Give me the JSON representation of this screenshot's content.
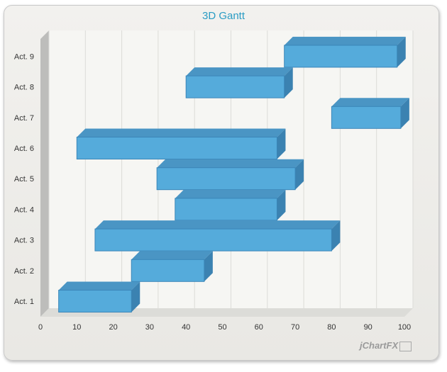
{
  "chart_data": {
    "type": "bar",
    "orientation": "horizontal-gantt",
    "title": "3D Gantt",
    "xlabel": "",
    "ylabel": "",
    "xlim": [
      0,
      100
    ],
    "xticks": [
      0,
      10,
      20,
      30,
      40,
      50,
      60,
      70,
      80,
      90,
      100
    ],
    "grid": true,
    "categories": [
      "Act. 1",
      "Act. 2",
      "Act. 3",
      "Act. 4",
      "Act. 5",
      "Act. 6",
      "Act. 7",
      "Act. 8",
      "Act. 9"
    ],
    "series": [
      {
        "ranges": [
          [
            5,
            25
          ],
          [
            25,
            45
          ],
          [
            15,
            80
          ],
          [
            37,
            65
          ],
          [
            32,
            70
          ],
          [
            10,
            65
          ],
          [
            80,
            99
          ],
          [
            40,
            67
          ],
          [
            67,
            98
          ]
        ]
      }
    ],
    "bar_color": "#55abdb"
  },
  "branding": {
    "logo_text": "jChartFX"
  }
}
